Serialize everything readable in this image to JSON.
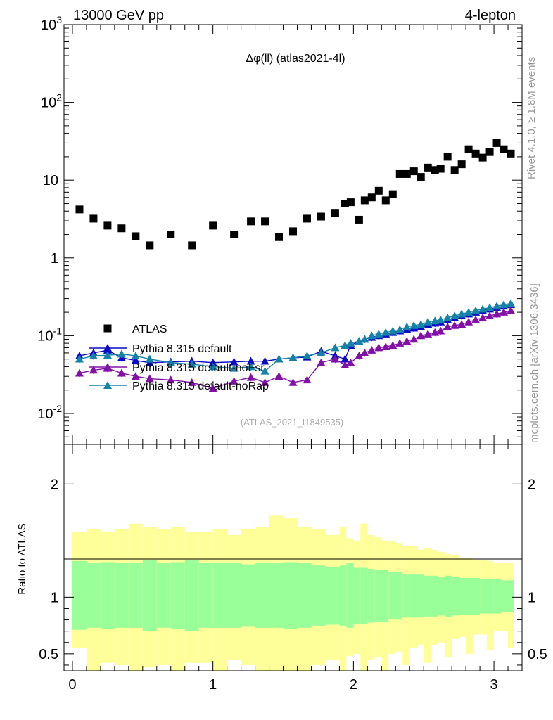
{
  "header": {
    "left": "13000 GeV pp",
    "right": "4-lepton"
  },
  "side_text": {
    "top": "Rivet 4.1.0, ≥ 1.8M events",
    "bottom": "mcplots.cern.ch [arXiv:1306.3436]"
  },
  "colors": {
    "atlas": "#000000",
    "default": "#0a0ac8",
    "noFsr": "#8210a8",
    "noRap": "#1583a8",
    "band_inner": "#99ff99",
    "band_outer": "#ffff99"
  },
  "chart_data": {
    "type": "scatter",
    "title": "Δφ(ll) (atlas2021-4l)",
    "analysis": "(ATLAS_2021_I1849535)",
    "xlim": [
      -0.06,
      3.2
    ],
    "ylim": [
      0.004,
      1000
    ],
    "yscale": "log",
    "ytick_labels": [
      "10^-2",
      "10^-1",
      "1",
      "10",
      "10^2",
      "10^3"
    ],
    "xtick_labels": [
      "0",
      "1",
      "2",
      "3"
    ],
    "ratio": {
      "ylabel": "Ratio to ATLAS",
      "ylim": [
        0.35,
        2.35
      ],
      "ytick_labels": [
        "0.5",
        "1",
        "2"
      ]
    },
    "legend": [
      "ATLAS",
      "Pythia 8.315 default",
      "Pythia 8.315 default-noFsr",
      "Pythia 8.315 default-noRap"
    ],
    "x": [
      0.05,
      0.15,
      0.25,
      0.35,
      0.45,
      0.55,
      0.7,
      0.85,
      1.0,
      1.15,
      1.27,
      1.37,
      1.47,
      1.57,
      1.67,
      1.77,
      1.87,
      1.94,
      1.98,
      2.04,
      2.08,
      2.13,
      2.18,
      2.23,
      2.28,
      2.33,
      2.38,
      2.43,
      2.48,
      2.53,
      2.58,
      2.62,
      2.67,
      2.72,
      2.77,
      2.82,
      2.87,
      2.92,
      2.97,
      3.02,
      3.07,
      3.12
    ],
    "series": [
      {
        "name": "ATLAS",
        "values": [
          4.2,
          3.2,
          2.6,
          2.4,
          1.9,
          1.45,
          2.0,
          1.45,
          2.6,
          2.0,
          2.95,
          2.95,
          1.85,
          2.2,
          3.2,
          3.4,
          3.8,
          5.0,
          5.2,
          3.1,
          5.5,
          6.0,
          7.3,
          5.5,
          6.6,
          12,
          12,
          13,
          11,
          14.5,
          13.5,
          14,
          20,
          13.5,
          16,
          25,
          22,
          19.5,
          23,
          30,
          25,
          22
        ]
      },
      {
        "name": "Pythia 8.315 default",
        "values": [
          0.055,
          0.06,
          0.065,
          0.052,
          0.048,
          0.045,
          0.046,
          0.047,
          0.045,
          0.046,
          0.047,
          0.047,
          0.05,
          0.052,
          0.053,
          0.063,
          0.055,
          0.05,
          0.075,
          0.085,
          0.09,
          0.095,
          0.1,
          0.105,
          0.11,
          0.115,
          0.12,
          0.125,
          0.13,
          0.14,
          0.145,
          0.15,
          0.16,
          0.17,
          0.18,
          0.19,
          0.2,
          0.21,
          0.22,
          0.23,
          0.24,
          0.25
        ]
      },
      {
        "name": "Pythia 8.315 default-noFsr",
        "values": [
          0.033,
          0.036,
          0.038,
          0.033,
          0.03,
          0.028,
          0.027,
          0.025,
          0.021,
          0.026,
          0.029,
          0.025,
          0.03,
          0.025,
          0.027,
          0.045,
          0.05,
          0.042,
          0.045,
          0.055,
          0.06,
          0.065,
          0.07,
          0.072,
          0.075,
          0.08,
          0.085,
          0.09,
          0.1,
          0.105,
          0.11,
          0.115,
          0.13,
          0.135,
          0.14,
          0.15,
          0.16,
          0.17,
          0.18,
          0.19,
          0.2,
          0.21
        ]
      },
      {
        "name": "Pythia 8.315 default-noRap",
        "values": [
          0.05,
          0.055,
          0.056,
          0.058,
          0.055,
          0.05,
          0.045,
          0.043,
          0.04,
          0.038,
          0.04,
          0.035,
          0.05,
          0.052,
          0.055,
          0.06,
          0.07,
          0.075,
          0.08,
          0.085,
          0.09,
          0.1,
          0.105,
          0.11,
          0.115,
          0.12,
          0.13,
          0.135,
          0.14,
          0.15,
          0.155,
          0.16,
          0.17,
          0.18,
          0.19,
          0.2,
          0.21,
          0.22,
          0.23,
          0.24,
          0.25,
          0.26
        ]
      }
    ],
    "band_edges": [
      0.0,
      0.1,
      0.2,
      0.3,
      0.4,
      0.5,
      0.6,
      0.7,
      0.8,
      0.9,
      1.0,
      1.1,
      1.2,
      1.3,
      1.4,
      1.5,
      1.6,
      1.7,
      1.8,
      1.9,
      1.95,
      2.0,
      2.05,
      2.1,
      2.15,
      2.2,
      2.25,
      2.3,
      2.35,
      2.4,
      2.45,
      2.5,
      2.55,
      2.6,
      2.65,
      2.7,
      2.75,
      2.8,
      2.85,
      2.9,
      2.95,
      3.0,
      3.05,
      3.1,
      3.14
    ],
    "band_inner": [
      0.32,
      0.3,
      0.31,
      0.3,
      0.3,
      0.33,
      0.3,
      0.31,
      0.33,
      0.3,
      0.3,
      0.3,
      0.29,
      0.3,
      0.3,
      0.31,
      0.3,
      0.28,
      0.27,
      0.28,
      0.3,
      0.26,
      0.26,
      0.25,
      0.24,
      0.24,
      0.22,
      0.22,
      0.2,
      0.2,
      0.2,
      0.19,
      0.19,
      0.18,
      0.19,
      0.18,
      0.17,
      0.17,
      0.17,
      0.16,
      0.16,
      0.16,
      0.15,
      0.15
    ],
    "band_outer_up": [
      0.58,
      0.6,
      0.58,
      0.6,
      0.65,
      0.62,
      0.6,
      0.62,
      0.58,
      0.58,
      0.6,
      0.55,
      0.6,
      0.62,
      0.72,
      0.7,
      0.62,
      0.6,
      0.55,
      0.62,
      0.52,
      0.5,
      0.65,
      0.55,
      0.53,
      0.5,
      0.5,
      0.48,
      0.45,
      0.45,
      0.42,
      0.43,
      0.42,
      0.4,
      0.38,
      0.37,
      0.35,
      0.35,
      0.33,
      0.33,
      0.32,
      0.3,
      0.3,
      0.3
    ],
    "band_outer_down": [
      0.45,
      0.6,
      0.58,
      0.6,
      0.65,
      0.62,
      0.6,
      0.62,
      0.58,
      0.58,
      0.6,
      0.55,
      0.6,
      0.62,
      0.72,
      0.7,
      0.62,
      0.6,
      0.55,
      0.62,
      0.52,
      0.5,
      0.65,
      0.55,
      0.53,
      0.5,
      0.5,
      0.48,
      0.45,
      0.45,
      0.42,
      0.43,
      0.42,
      0.4,
      0.38,
      0.37,
      0.35,
      0.35,
      0.33,
      0.33,
      0.32,
      0.3,
      0.3,
      0.3
    ]
  }
}
